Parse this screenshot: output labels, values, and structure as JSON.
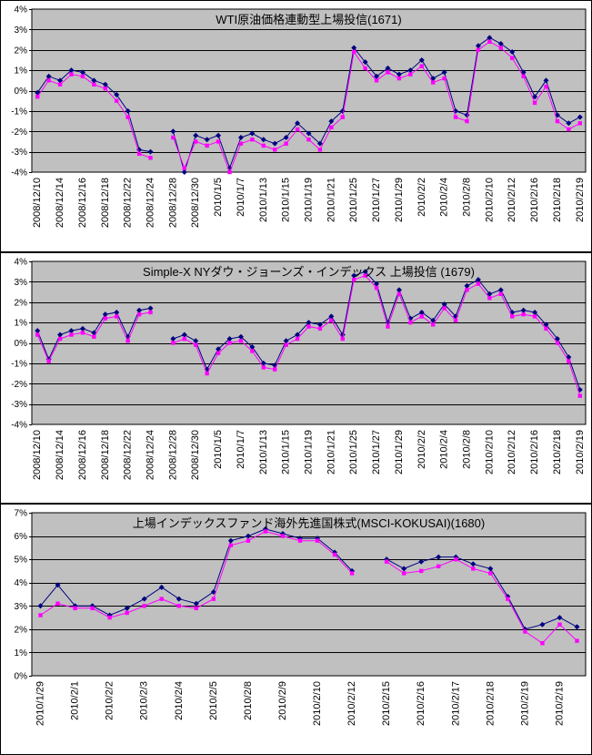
{
  "chart_data": [
    {
      "type": "line",
      "title": "WTI原油価格連動型上場投信(1671)",
      "ylim": [
        -4,
        4
      ],
      "y_tick_step": 1,
      "y_tick_labels": [
        "4%",
        "3%",
        "2%",
        "1%",
        "0%",
        "-1%",
        "-2%",
        "-3%",
        "-4%"
      ],
      "x_tick_labels": [
        "2008/12/10",
        "2008/12/14",
        "2008/12/16",
        "2008/12/18",
        "2008/12/22",
        "2008/12/24",
        "2008/12/28",
        "2008/12/30",
        "2010/1/5",
        "2010/1/7",
        "2010/1/13",
        "2010/1/15",
        "2010/1/19",
        "2010/1/21",
        "2010/1/25",
        "2010/1/27",
        "2010/1/29",
        "2010/2/2",
        "2010/2/4",
        "2010/2/8",
        "2010/2/10",
        "2010/2/12",
        "2010/2/16",
        "2010/2/18",
        "2010/2/19"
      ],
      "label_every": 2,
      "grid": true,
      "legend": "none",
      "plot_bg": "#c0c0c0",
      "series": [
        {
          "name": "series1",
          "color": "#000080",
          "marker": "diamond",
          "values": [
            -0.1,
            0.7,
            0.5,
            1.0,
            0.9,
            0.5,
            0.3,
            -0.2,
            -1.0,
            -2.9,
            -3.0,
            null,
            -2.0,
            -4.0,
            -2.2,
            -2.4,
            -2.2,
            -3.8,
            -2.3,
            -2.1,
            -2.4,
            -2.6,
            -2.3,
            -1.6,
            -2.1,
            -2.6,
            -1.5,
            -1.0,
            2.1,
            1.4,
            0.7,
            1.1,
            0.8,
            1.0,
            1.5,
            0.6,
            0.9,
            -1.0,
            -1.2,
            2.2,
            2.6,
            2.3,
            1.9,
            0.9,
            -0.3,
            0.5,
            -1.2,
            -1.6,
            -1.3
          ]
        },
        {
          "name": "series2",
          "color": "#ff00ff",
          "marker": "square",
          "values": [
            -0.3,
            0.5,
            0.3,
            0.8,
            0.7,
            0.3,
            0.1,
            -0.5,
            -1.3,
            -3.1,
            -3.3,
            null,
            -2.3,
            -3.8,
            -2.5,
            -2.7,
            -2.5,
            -4.0,
            -2.6,
            -2.4,
            -2.7,
            -2.9,
            -2.6,
            -1.9,
            -2.4,
            -2.9,
            -1.8,
            -1.3,
            1.9,
            1.1,
            0.5,
            0.9,
            0.6,
            0.8,
            1.2,
            0.4,
            0.6,
            -1.3,
            -1.5,
            2.0,
            2.4,
            2.1,
            1.6,
            0.7,
            -0.6,
            0.2,
            -1.5,
            -1.9,
            -1.6
          ]
        }
      ]
    },
    {
      "type": "line",
      "title": "Simple-X NYダウ・ジョーンズ・インデックス 上場投信 (1679)",
      "ylim": [
        -4,
        4
      ],
      "y_tick_step": 1,
      "y_tick_labels": [
        "4%",
        "3%",
        "2%",
        "1%",
        "0%",
        "-1%",
        "-2%",
        "-3%",
        "-4%"
      ],
      "x_tick_labels": [
        "2008/12/10",
        "2008/12/14",
        "2008/12/16",
        "2008/12/18",
        "2008/12/22",
        "2008/12/24",
        "2008/12/28",
        "2008/12/30",
        "2010/1/5",
        "2010/1/7",
        "2010/1/13",
        "2010/1/15",
        "2010/1/19",
        "2010/1/21",
        "2010/1/25",
        "2010/1/27",
        "2010/1/29",
        "2010/2/2",
        "2010/2/4",
        "2010/2/8",
        "2010/2/10",
        "2010/2/12",
        "2010/2/16",
        "2010/2/18",
        "2010/2/19"
      ],
      "label_every": 2,
      "grid": true,
      "legend": "none",
      "plot_bg": "#c0c0c0",
      "series": [
        {
          "name": "series1",
          "color": "#000080",
          "marker": "diamond",
          "values": [
            0.6,
            -0.8,
            0.4,
            0.6,
            0.7,
            0.5,
            1.4,
            1.5,
            0.3,
            1.6,
            1.7,
            null,
            0.2,
            0.4,
            0.1,
            -1.3,
            -0.3,
            0.2,
            0.3,
            -0.2,
            -1.0,
            -1.1,
            0.1,
            0.4,
            1.0,
            0.9,
            1.3,
            0.4,
            3.3,
            3.5,
            2.9,
            1.0,
            2.6,
            1.2,
            1.5,
            1.1,
            1.9,
            1.3,
            2.8,
            3.1,
            2.4,
            2.6,
            1.5,
            1.6,
            1.5,
            0.9,
            0.2,
            -0.7,
            -2.3
          ]
        },
        {
          "name": "series2",
          "color": "#ff00ff",
          "marker": "square",
          "values": [
            0.4,
            -0.9,
            0.2,
            0.4,
            0.5,
            0.3,
            1.2,
            1.3,
            0.1,
            1.4,
            1.5,
            null,
            0.0,
            0.2,
            -0.1,
            -1.5,
            -0.5,
            0.0,
            0.1,
            -0.4,
            -1.2,
            -1.3,
            -0.1,
            0.2,
            0.8,
            0.7,
            1.1,
            0.2,
            3.1,
            3.3,
            2.7,
            0.8,
            2.4,
            1.0,
            1.3,
            0.9,
            1.7,
            1.1,
            2.6,
            2.9,
            2.2,
            2.4,
            1.3,
            1.4,
            1.3,
            0.7,
            0.0,
            -0.9,
            -2.6
          ]
        }
      ]
    },
    {
      "type": "line",
      "title": "上場インデックスファンド海外先進国株式(MSCI-KOKUSAI)(1680)",
      "ylim": [
        0,
        7
      ],
      "y_tick_step": 1,
      "y_tick_labels": [
        "7%",
        "6%",
        "5%",
        "4%",
        "3%",
        "2%",
        "1%",
        "0%"
      ],
      "x_tick_labels": [
        "2010/1/29",
        "2010/2/1",
        "2010/2/2",
        "2010/2/3",
        "2010/2/4",
        "2010/2/5",
        "2010/2/8",
        "2010/2/9",
        "2010/2/10",
        "2010/2/12",
        "2010/2/15",
        "2010/2/16",
        "2010/2/17",
        "2010/2/18",
        "2010/2/19",
        "2010/2/19"
      ],
      "label_every": 2,
      "grid": true,
      "legend": "none",
      "plot_bg": "#c0c0c0",
      "series": [
        {
          "name": "series1",
          "color": "#000080",
          "marker": "diamond",
          "values": [
            3.0,
            3.9,
            3.0,
            3.0,
            2.6,
            2.9,
            3.3,
            3.8,
            3.3,
            3.1,
            3.6,
            5.8,
            6.0,
            6.3,
            6.1,
            5.9,
            5.9,
            5.3,
            4.5,
            null,
            5.0,
            4.6,
            4.9,
            5.1,
            5.1,
            4.8,
            4.6,
            3.4,
            2.0,
            2.2,
            2.5,
            2.1
          ]
        },
        {
          "name": "series2",
          "color": "#ff00ff",
          "marker": "square",
          "values": [
            2.6,
            3.1,
            2.9,
            2.9,
            2.5,
            2.7,
            3.0,
            3.3,
            3.0,
            2.9,
            3.3,
            5.6,
            5.8,
            6.2,
            6.0,
            5.8,
            5.8,
            5.2,
            4.4,
            null,
            4.9,
            4.4,
            4.5,
            4.7,
            5.0,
            4.6,
            4.4,
            3.3,
            1.9,
            1.4,
            2.2,
            1.5
          ]
        }
      ]
    }
  ]
}
